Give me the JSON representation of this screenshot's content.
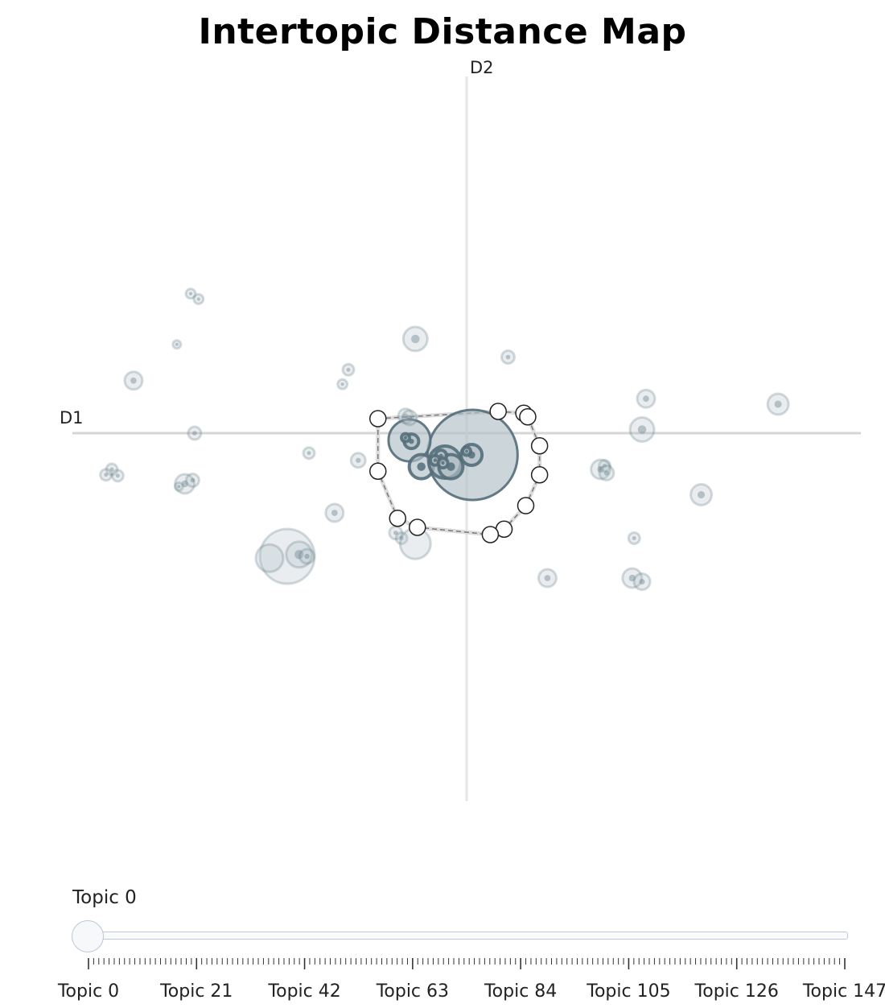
{
  "chart_data": {
    "type": "scatter",
    "title": "Intertopic Distance Map",
    "xlabel": "D1",
    "ylabel": "D2",
    "xlim": [
      -10,
      10
    ],
    "ylim": [
      -9.5,
      8.5
    ],
    "bubbles": [
      {
        "x": 0.3,
        "y": -1.2,
        "r": 56,
        "selected": true
      },
      {
        "x": -2.9,
        "y": -0.4,
        "r": 26,
        "selected": true
      },
      {
        "x": -2.8,
        "y": -0.45,
        "r": 9,
        "selected": true
      },
      {
        "x": -2.3,
        "y": -1.85,
        "r": 15,
        "selected": true
      },
      {
        "x": -1.1,
        "y": -1.6,
        "r": 20,
        "selected": true
      },
      {
        "x": -0.8,
        "y": -1.85,
        "r": 15,
        "selected": true
      },
      {
        "x": 0.25,
        "y": -1.2,
        "r": 13,
        "selected": true
      },
      {
        "x": -1.3,
        "y": -1.25,
        "r": 7,
        "selected": true
      },
      {
        "x": -1.6,
        "y": -1.5,
        "r": 6,
        "selected": true
      },
      {
        "x": -1.2,
        "y": -1.65,
        "r": 6,
        "selected": true
      },
      {
        "x": 0.0,
        "y": -1.0,
        "r": 5,
        "selected": true
      },
      {
        "x": -3.1,
        "y": -0.25,
        "r": 5,
        "selected": true
      },
      {
        "x": -14.0,
        "y": 7.7,
        "r": 6
      },
      {
        "x": -13.6,
        "y": 7.4,
        "r": 6
      },
      {
        "x": -14.7,
        "y": 4.9,
        "r": 5
      },
      {
        "x": -2.6,
        "y": 5.2,
        "r": 15
      },
      {
        "x": 2.1,
        "y": 4.2,
        "r": 8
      },
      {
        "x": -6.0,
        "y": 3.5,
        "r": 7
      },
      {
        "x": -6.3,
        "y": 2.7,
        "r": 6
      },
      {
        "x": -16.9,
        "y": 2.9,
        "r": 11
      },
      {
        "x": 9.1,
        "y": 1.9,
        "r": 11
      },
      {
        "x": 15.8,
        "y": 1.6,
        "r": 13
      },
      {
        "x": -3.1,
        "y": 0.95,
        "r": 9
      },
      {
        "x": -2.9,
        "y": 0.85,
        "r": 9
      },
      {
        "x": 8.9,
        "y": 0.2,
        "r": 15
      },
      {
        "x": -13.8,
        "y": 0.0,
        "r": 8
      },
      {
        "x": -8.0,
        "y": -1.1,
        "r": 7
      },
      {
        "x": -5.5,
        "y": -1.5,
        "r": 9
      },
      {
        "x": -18.0,
        "y": -2.0,
        "r": 7
      },
      {
        "x": -18.3,
        "y": -2.3,
        "r": 7
      },
      {
        "x": -17.7,
        "y": -2.35,
        "r": 7
      },
      {
        "x": 7.0,
        "y": -1.8,
        "r": 7
      },
      {
        "x": 6.8,
        "y": -2.0,
        "r": 12
      },
      {
        "x": 7.1,
        "y": -2.2,
        "r": 9
      },
      {
        "x": -14.3,
        "y": -2.8,
        "r": 12
      },
      {
        "x": -13.9,
        "y": -2.6,
        "r": 8
      },
      {
        "x": -14.6,
        "y": -2.95,
        "r": 5
      },
      {
        "x": 11.9,
        "y": -3.4,
        "r": 13
      },
      {
        "x": -6.7,
        "y": -4.4,
        "r": 11
      },
      {
        "x": -3.6,
        "y": -5.5,
        "r": 8
      },
      {
        "x": -3.3,
        "y": -5.8,
        "r": 7
      },
      {
        "x": -2.6,
        "y": -6.1,
        "r": 19
      },
      {
        "x": -9.1,
        "y": -6.8,
        "r": 34
      },
      {
        "x": -10.0,
        "y": -6.9,
        "r": 17
      },
      {
        "x": -8.5,
        "y": -6.7,
        "r": 16
      },
      {
        "x": -8.1,
        "y": -6.8,
        "r": 9
      },
      {
        "x": 8.5,
        "y": -5.8,
        "r": 7
      },
      {
        "x": 4.1,
        "y": -8.0,
        "r": 11
      },
      {
        "x": 8.4,
        "y": -8.0,
        "r": 12
      },
      {
        "x": 8.9,
        "y": -8.2,
        "r": 10
      }
    ],
    "hull": [
      [
        -4.5,
        0.8
      ],
      [
        1.6,
        1.2
      ],
      [
        2.9,
        1.1
      ],
      [
        3.1,
        0.9
      ],
      [
        3.7,
        -0.7
      ],
      [
        3.7,
        -2.3
      ],
      [
        3.0,
        -4.0
      ],
      [
        1.9,
        -5.3
      ],
      [
        1.2,
        -5.6
      ],
      [
        -2.5,
        -5.2
      ],
      [
        -3.5,
        -4.7
      ],
      [
        -4.5,
        -2.1
      ]
    ],
    "slider": {
      "current": "Topic 0",
      "value": 0,
      "min": 0,
      "max": 147,
      "tick_labels": [
        "Topic 0",
        "Topic 21",
        "Topic 42",
        "Topic 63",
        "Topic 84",
        "Topic 105",
        "Topic 126",
        "Topic 147"
      ]
    },
    "colors": {
      "bubble_fill": "#b0bec5",
      "bubble_stroke": "#546e7a",
      "selected_fill": "#b0bec5"
    }
  }
}
